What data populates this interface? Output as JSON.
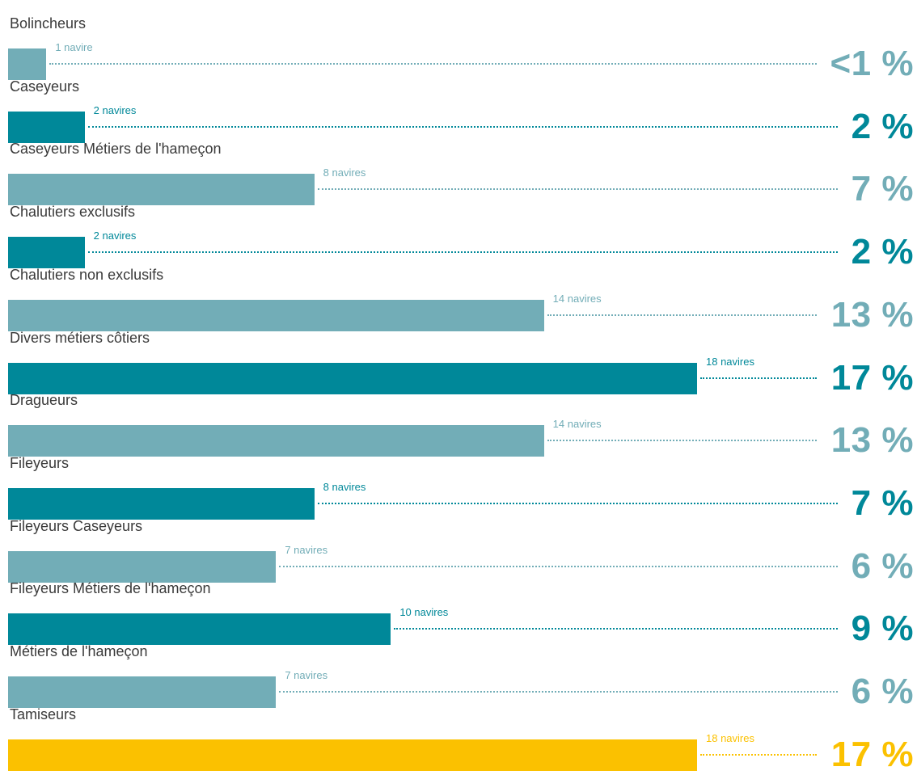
{
  "colors": {
    "light": "#72adb7",
    "dark": "#008899",
    "highlight": "#fbc100"
  },
  "chart_data": {
    "type": "bar",
    "orientation": "horizontal",
    "categories": [
      "Bolincheurs",
      "Caseyeurs",
      "Caseyeurs Métiers de l'hameçon",
      "Chalutiers exclusifs",
      "Chalutiers non exclusifs",
      "Divers métiers côtiers",
      "Dragueurs",
      "Fileyeurs",
      "Fileyeurs Caseyeurs",
      "Fileyeurs Métiers de l'hameçon",
      "Métiers de l'hameçon",
      "Tamiseurs"
    ],
    "values": [
      1,
      2,
      8,
      2,
      14,
      18,
      14,
      8,
      7,
      10,
      7,
      18
    ],
    "count_labels": [
      "1 navire",
      "2 navires",
      "8 navires",
      "2 navires",
      "14 navires",
      "18 navires",
      "14 navires",
      "8 navires",
      "7 navires",
      "10 navires",
      "7 navires",
      "18 navires"
    ],
    "percent_labels": [
      "<1 %",
      "2 %",
      "7 %",
      "2 %",
      "13 %",
      "17 %",
      "13 %",
      "7 %",
      "6 %",
      "9 %",
      "6 %",
      "17 %"
    ],
    "bar_colors": [
      "#72adb7",
      "#008899",
      "#72adb7",
      "#008899",
      "#72adb7",
      "#008899",
      "#72adb7",
      "#008899",
      "#72adb7",
      "#008899",
      "#72adb7",
      "#fbc100"
    ],
    "xlim": [
      0,
      18
    ],
    "grid": false,
    "legend": "none"
  }
}
